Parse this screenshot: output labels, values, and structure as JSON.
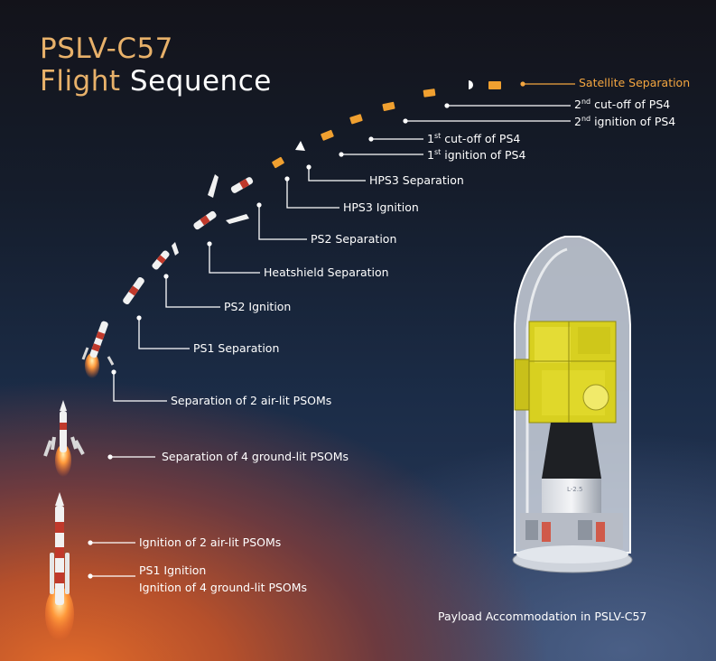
{
  "title": {
    "line1": "PSLV-C57",
    "line2_first": "Flight",
    "line2_rest": " Sequence"
  },
  "events": [
    {
      "id": "satellite-separation",
      "text": "Satellite Separation"
    },
    {
      "id": "ps4-cutoff-2",
      "pre": "2",
      "sup": "nd",
      "post": " cut-off of PS4"
    },
    {
      "id": "ps4-ignition-2",
      "pre": "2",
      "sup": "nd",
      "post": " ignition of PS4"
    },
    {
      "id": "ps4-cutoff-1",
      "pre": "1",
      "sup": "st",
      "post": " cut-off of PS4"
    },
    {
      "id": "ps4-ignition-1",
      "pre": "1",
      "sup": "st",
      "post": " ignition of PS4"
    },
    {
      "id": "hps3-separation",
      "text": "HPS3 Separation"
    },
    {
      "id": "hps3-ignition",
      "text": "HPS3 Ignition"
    },
    {
      "id": "ps2-separation",
      "text": "PS2 Separation"
    },
    {
      "id": "heatshield-separation",
      "text": "Heatshield Separation"
    },
    {
      "id": "ps2-ignition",
      "text": "PS2 Ignition"
    },
    {
      "id": "ps1-separation",
      "text": "PS1 Separation"
    },
    {
      "id": "separation-2-air-lit-psoms",
      "text": "Separation of 2 air-lit PSOMs"
    },
    {
      "id": "separation-4-ground-lit-psoms",
      "text": "Separation of 4 ground-lit PSOMs"
    },
    {
      "id": "ignition-2-air-lit-psoms",
      "text": "Ignition of 2 air-lit PSOMs"
    },
    {
      "id": "ps1-ignition",
      "text": "PS1 Ignition"
    },
    {
      "id": "ignition-4-ground-lit-psoms",
      "text": "Ignition of 4 ground-lit PSOMs"
    }
  ],
  "payload_caption": "Payload Accommodation in PSLV-C57",
  "adapter_label": "L-2.5",
  "colors": {
    "accent_orange": "#f4a640",
    "title_gold": "#e8b16a",
    "text": "#ffffff"
  }
}
